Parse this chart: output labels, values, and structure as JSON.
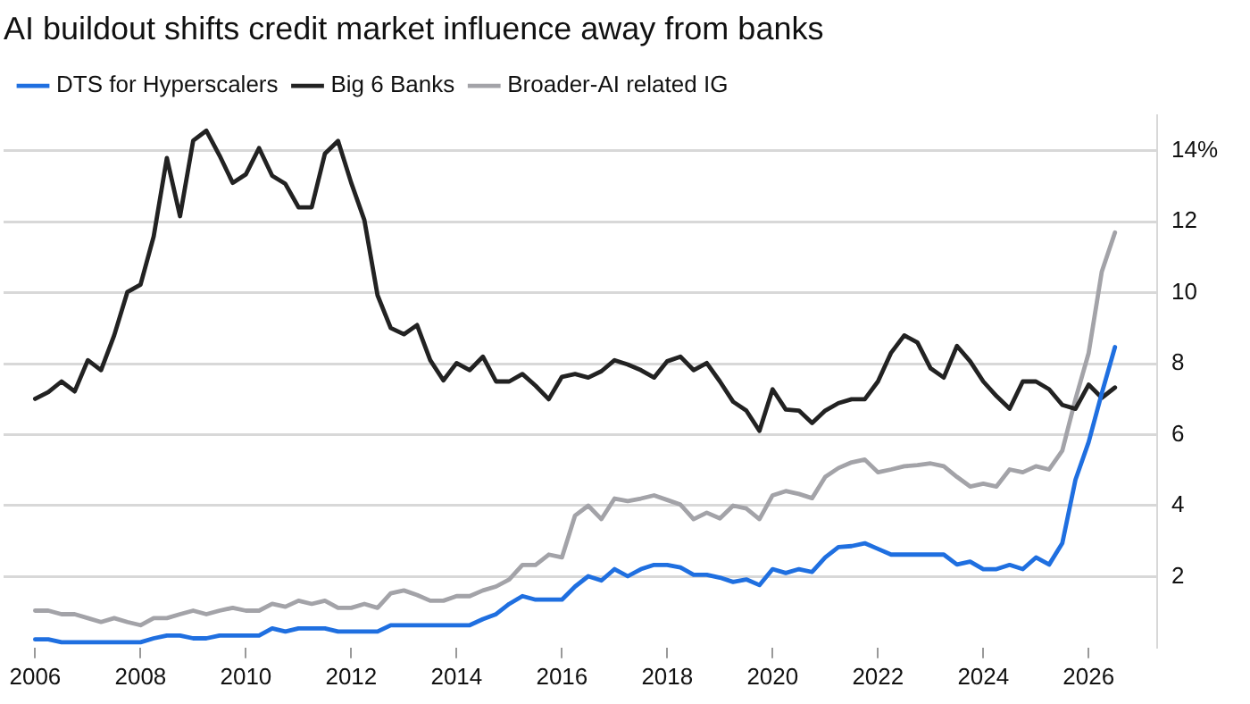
{
  "chart_data": {
    "type": "line",
    "title": "AI buildout shifts credit market influence away from banks",
    "x": [
      2006,
      2006.25,
      2006.5,
      2006.75,
      2007,
      2007.25,
      2007.5,
      2007.75,
      2008,
      2008.25,
      2008.5,
      2008.75,
      2009,
      2009.25,
      2009.5,
      2009.75,
      2010,
      2010.25,
      2010.5,
      2010.75,
      2011,
      2011.25,
      2011.5,
      2011.75,
      2012,
      2012.25,
      2012.5,
      2012.75,
      2013,
      2013.25,
      2013.5,
      2013.75,
      2014,
      2014.25,
      2014.5,
      2014.75,
      2015,
      2015.25,
      2015.5,
      2015.75,
      2016,
      2016.25,
      2016.5,
      2016.75,
      2017,
      2017.25,
      2017.5,
      2017.75,
      2018,
      2018.25,
      2018.5,
      2018.75,
      2019,
      2019.25,
      2019.5,
      2019.75,
      2020,
      2020.25,
      2020.5,
      2020.75,
      2021,
      2021.25,
      2021.5,
      2021.75,
      2022,
      2022.25,
      2022.5,
      2022.75,
      2023,
      2023.25,
      2023.5,
      2023.75,
      2024,
      2024.25,
      2024.5,
      2024.75,
      2025,
      2025.25,
      2025.5,
      2025.75,
      2026,
      2026.25,
      2026.5
    ],
    "series": [
      {
        "name": "DTS for Hyperscalers",
        "color": "#1f6fe0",
        "values": [
          0.23,
          0.23,
          0.15,
          0.15,
          0.15,
          0.15,
          0.15,
          0.15,
          0.15,
          0.26,
          0.34,
          0.34,
          0.26,
          0.26,
          0.34,
          0.34,
          0.34,
          0.34,
          0.54,
          0.45,
          0.54,
          0.54,
          0.54,
          0.45,
          0.45,
          0.45,
          0.45,
          0.63,
          0.63,
          0.63,
          0.63,
          0.63,
          0.63,
          0.63,
          0.8,
          0.94,
          1.23,
          1.45,
          1.35,
          1.35,
          1.35,
          1.72,
          2.01,
          1.89,
          2.21,
          2.01,
          2.21,
          2.33,
          2.33,
          2.26,
          2.05,
          2.05,
          1.97,
          1.85,
          1.92,
          1.76,
          2.21,
          2.1,
          2.21,
          2.13,
          2.54,
          2.83,
          2.86,
          2.94,
          2.78,
          2.62,
          2.62,
          2.62,
          2.62,
          2.62,
          2.34,
          2.42,
          2.21,
          2.21,
          2.33,
          2.21,
          2.54,
          2.34,
          2.94,
          4.73,
          5.79,
          7.17,
          8.47
        ]
      },
      {
        "name": "Big 6 Banks",
        "color": "#222222",
        "values": [
          7.01,
          7.2,
          7.5,
          7.22,
          8.1,
          7.82,
          8.8,
          10.02,
          10.23,
          11.59,
          13.8,
          12.16,
          14.29,
          14.57,
          13.87,
          13.1,
          13.34,
          14.08,
          13.3,
          13.07,
          12.41,
          12.41,
          13.92,
          14.28,
          13.1,
          12.05,
          9.93,
          9.01,
          8.83,
          9.09,
          8.1,
          7.53,
          8.02,
          7.82,
          8.2,
          7.5,
          7.5,
          7.71,
          7.38,
          7.0,
          7.63,
          7.71,
          7.61,
          7.79,
          8.1,
          7.98,
          7.82,
          7.61,
          8.07,
          8.2,
          7.82,
          8.02,
          7.5,
          6.93,
          6.68,
          6.11,
          7.28,
          6.71,
          6.68,
          6.33,
          6.68,
          6.89,
          7.0,
          7.0,
          7.5,
          8.31,
          8.8,
          8.6,
          7.87,
          7.61,
          8.5,
          8.07,
          7.5,
          7.09,
          6.73,
          7.5,
          7.5,
          7.28,
          6.84,
          6.73,
          7.41,
          7.04,
          7.33
        ]
      },
      {
        "name": "Broader-AI related IG",
        "color": "#a3a3a8",
        "values": [
          1.04,
          1.04,
          0.94,
          0.94,
          0.83,
          0.72,
          0.83,
          0.72,
          0.63,
          0.83,
          0.83,
          0.94,
          1.04,
          0.94,
          1.04,
          1.12,
          1.04,
          1.04,
          1.23,
          1.15,
          1.32,
          1.23,
          1.32,
          1.12,
          1.12,
          1.23,
          1.12,
          1.53,
          1.61,
          1.48,
          1.32,
          1.32,
          1.45,
          1.45,
          1.61,
          1.72,
          1.92,
          2.33,
          2.33,
          2.62,
          2.54,
          3.72,
          4.0,
          3.62,
          4.2,
          4.13,
          4.2,
          4.29,
          4.16,
          4.03,
          3.62,
          3.8,
          3.64,
          4.0,
          3.92,
          3.62,
          4.29,
          4.41,
          4.33,
          4.21,
          4.81,
          5.06,
          5.22,
          5.3,
          4.94,
          5.02,
          5.11,
          5.14,
          5.19,
          5.11,
          4.81,
          4.54,
          4.62,
          4.54,
          5.02,
          4.94,
          5.11,
          5.02,
          5.55,
          7.0,
          8.3,
          10.6,
          11.7
        ]
      }
    ],
    "xlim": [
      2005.4,
      2027.3
    ],
    "xticks": [
      2006,
      2008,
      2010,
      2012,
      2014,
      2016,
      2018,
      2020,
      2022,
      2024,
      2026
    ],
    "ylim": [
      0,
      15
    ],
    "yticks": [
      2,
      4,
      6,
      8,
      10,
      12,
      {
        "value": 14,
        "label": "14%"
      }
    ],
    "grid": "y",
    "legend": "top left",
    "marker": "none",
    "line_style": "solid"
  }
}
